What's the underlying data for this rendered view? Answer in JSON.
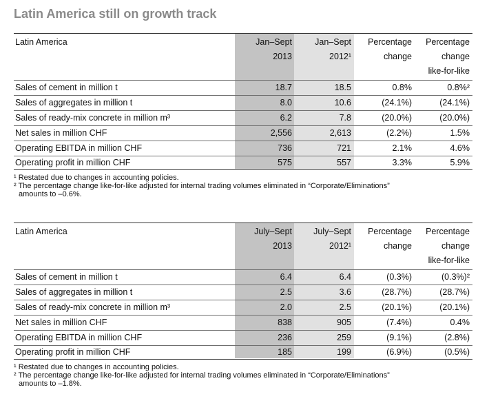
{
  "title": "Latin America still on growth track",
  "tables": [
    {
      "header": {
        "label": "Latin America",
        "col1": [
          "Jan–Sept",
          "2013"
        ],
        "col2": [
          "Jan–Sept",
          "2012¹"
        ],
        "col3": [
          "Percentage",
          "change"
        ],
        "col4": [
          "Percentage",
          "change",
          "like-for-like"
        ]
      },
      "rows": [
        {
          "label": "Sales of cement in million t",
          "c1": "18.7",
          "c2": "18.5",
          "c3": "0.8%",
          "c4": "0.8%²"
        },
        {
          "label": "Sales of aggregates in million t",
          "c1": "8.0",
          "c2": "10.6",
          "c3": "(24.1%)",
          "c4": "(24.1%)"
        },
        {
          "label": "Sales of ready-mix concrete in million m³",
          "c1": "6.2",
          "c2": "7.8",
          "c3": "(20.0%)",
          "c4": "(20.0%)"
        },
        {
          "label": "Net sales in million CHF",
          "c1": "2,556",
          "c2": "2,613",
          "c3": "(2.2%)",
          "c4": "1.5%"
        },
        {
          "label": "Operating EBITDA in million CHF",
          "c1": "736",
          "c2": "721",
          "c3": "2.1%",
          "c4": "4.6%"
        },
        {
          "label": "Operating profit in million CHF",
          "c1": "575",
          "c2": "557",
          "c3": "3.3%",
          "c4": "5.9%"
        }
      ],
      "footnotes": [
        "¹ Restated due to changes in accounting policies.",
        "² The percentage change like-for-like adjusted for internal trading volumes eliminated in “Corporate/Eliminations”",
        "amounts to –0.6%."
      ]
    },
    {
      "header": {
        "label": "Latin America",
        "col1": [
          "July–Sept",
          "2013"
        ],
        "col2": [
          "July–Sept",
          "2012¹"
        ],
        "col3": [
          "Percentage",
          "change"
        ],
        "col4": [
          "Percentage",
          "change",
          "like-for-like"
        ]
      },
      "rows": [
        {
          "label": "Sales of cement in million t",
          "c1": "6.4",
          "c2": "6.4",
          "c3": "(0.3%)",
          "c4": "(0.3%)²"
        },
        {
          "label": "Sales of aggregates in million t",
          "c1": "2.5",
          "c2": "3.6",
          "c3": "(28.7%)",
          "c4": "(28.7%)"
        },
        {
          "label": "Sales of ready-mix concrete in million m³",
          "c1": "2.0",
          "c2": "2.5",
          "c3": "(20.1%)",
          "c4": "(20.1%)"
        },
        {
          "label": "Net sales in million CHF",
          "c1": "838",
          "c2": "905",
          "c3": "(7.4%)",
          "c4": "0.4%"
        },
        {
          "label": "Operating EBITDA in million CHF",
          "c1": "236",
          "c2": "259",
          "c3": "(9.1%)",
          "c4": "(2.8%)"
        },
        {
          "label": "Operating profit in million CHF",
          "c1": "185",
          "c2": "199",
          "c3": "(6.9%)",
          "c4": "(0.5%)"
        }
      ],
      "footnotes": [
        "¹ Restated due to changes in accounting policies.",
        "² The percentage change like-for-like adjusted for internal trading volumes eliminated in “Corporate/Eliminations”",
        "amounts to –1.8%."
      ]
    }
  ]
}
